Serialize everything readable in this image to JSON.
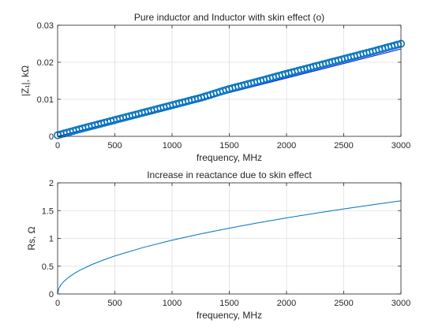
{
  "chart_data": [
    {
      "type": "line",
      "title": "Pure inductor and Inductor with skin effect (o)",
      "xlabel": "frequency, MHz",
      "ylabel": "|Z₁|, kΩ",
      "xlim": [
        0,
        3000
      ],
      "ylim": [
        0,
        0.03
      ],
      "xticks": [
        "0",
        "500",
        "1000",
        "1500",
        "2000",
        "2500",
        "3000"
      ],
      "yticks": [
        "0",
        "0.01",
        "0.02",
        "0.03"
      ],
      "grid": true,
      "legend": "none",
      "series": [
        {
          "color": "#0000ff",
          "marker": "none",
          "x": [
            0,
            3000
          ],
          "y": [
            0,
            0.0236
          ]
        },
        {
          "color": "#0072bd",
          "marker": "o",
          "x": [
            0,
            250,
            500,
            750,
            1000,
            1250,
            1500,
            1750,
            2000,
            2250,
            2500,
            2750,
            3000
          ],
          "y": [
            0.0003,
            0.0024,
            0.0044,
            0.0064,
            0.0084,
            0.0104,
            0.0128,
            0.0148,
            0.0169,
            0.0189,
            0.0209,
            0.0229,
            0.025
          ]
        }
      ]
    },
    {
      "type": "line",
      "title": "Increase in reactance due to skin effect",
      "xlabel": "frequency, MHz",
      "ylabel": "Rs, Ω",
      "xlim": [
        0,
        3000
      ],
      "ylim": [
        0,
        2
      ],
      "xticks": [
        "0",
        "500",
        "1000",
        "1500",
        "2000",
        "2500",
        "3000"
      ],
      "yticks": [
        "0",
        "0.5",
        "1",
        "1.5",
        "2"
      ],
      "grid": true,
      "legend": "none",
      "series": [
        {
          "color": "#0072bd",
          "marker": "none",
          "x": [
            0,
            10,
            25,
            50,
            100,
            150,
            200,
            300,
            400,
            500,
            750,
            1000,
            1250,
            1500,
            1750,
            2000,
            2250,
            2500,
            2750,
            3000
          ],
          "y": [
            0,
            0.097,
            0.153,
            0.217,
            0.306,
            0.375,
            0.433,
            0.53,
            0.612,
            0.684,
            0.838,
            0.968,
            1.082,
            1.185,
            1.28,
            1.369,
            1.452,
            1.53,
            1.605,
            1.677
          ]
        }
      ]
    }
  ]
}
